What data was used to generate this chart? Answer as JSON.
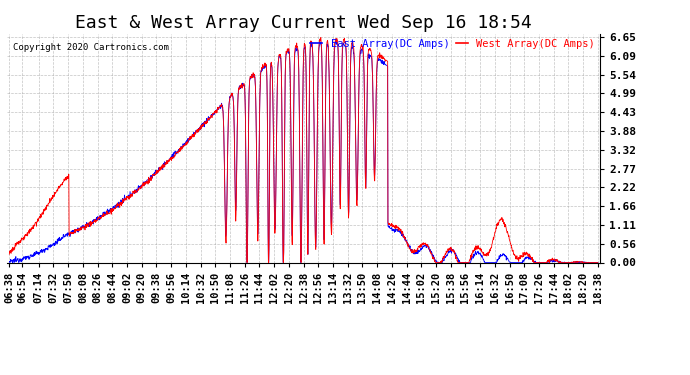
{
  "title": "East & West Array Current Wed Sep 16 18:54",
  "copyright": "Copyright 2020 Cartronics.com",
  "legend_east": "East Array(DC Amps)",
  "legend_west": "West Array(DC Amps)",
  "east_color": "#0000FF",
  "west_color": "#FF0000",
  "ylabel_right": [
    "6.65",
    "6.09",
    "5.54",
    "4.99",
    "4.43",
    "3.88",
    "3.32",
    "2.77",
    "2.22",
    "1.66",
    "1.11",
    "0.56",
    "0.00"
  ],
  "ymax": 6.65,
  "ymin": 0.0,
  "background_color": "#FFFFFF",
  "grid_color": "#AAAAAA",
  "title_fontsize": 13,
  "tick_fontsize": 7.5,
  "xticks": [
    "06:38",
    "06:54",
    "07:14",
    "07:32",
    "07:50",
    "08:08",
    "08:26",
    "08:44",
    "09:02",
    "09:20",
    "09:38",
    "09:56",
    "10:14",
    "10:32",
    "10:50",
    "11:08",
    "11:26",
    "11:44",
    "12:02",
    "12:20",
    "12:38",
    "12:56",
    "13:14",
    "13:32",
    "13:50",
    "14:08",
    "14:26",
    "14:44",
    "15:02",
    "15:20",
    "15:38",
    "15:56",
    "16:14",
    "16:32",
    "16:50",
    "17:08",
    "17:26",
    "17:44",
    "18:02",
    "18:20",
    "18:38"
  ]
}
